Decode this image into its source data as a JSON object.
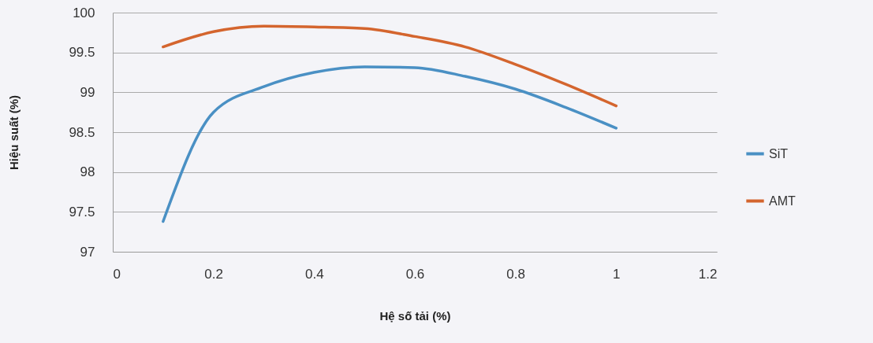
{
  "chart_data": {
    "type": "line",
    "xlabel": "Hệ số tải (%)",
    "ylabel": "Hiệu suất (%)",
    "x": [
      0.1,
      0.2,
      0.3,
      0.4,
      0.5,
      0.6,
      0.7,
      0.8,
      0.9,
      1.0
    ],
    "series": [
      {
        "name": "SiT",
        "color": "#4a90c4",
        "values": [
          97.38,
          98.75,
          99.07,
          99.25,
          99.32,
          99.31,
          99.2,
          99.04,
          98.81,
          98.55
        ]
      },
      {
        "name": "AMT",
        "color": "#d4652e",
        "values": [
          99.57,
          99.76,
          99.83,
          99.82,
          99.8,
          99.7,
          99.57,
          99.35,
          99.1,
          98.83
        ]
      }
    ],
    "xlim": [
      0,
      1.2
    ],
    "xticks": [
      0,
      0.2,
      0.4,
      0.6,
      0.8,
      1,
      1.2
    ],
    "ylim": [
      97,
      100
    ],
    "yticks": [
      97,
      97.5,
      98,
      98.5,
      99,
      99.5,
      100
    ],
    "grid": "y",
    "legend": "right",
    "marker": "none",
    "line_style": "solid"
  }
}
